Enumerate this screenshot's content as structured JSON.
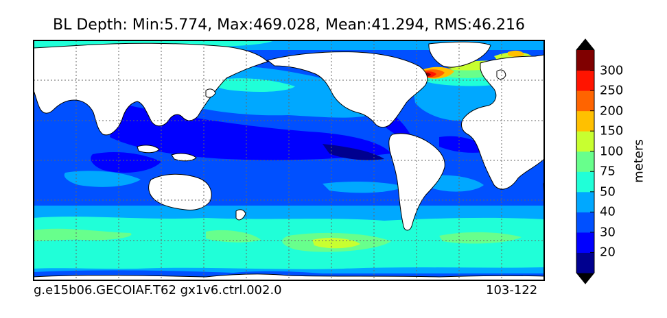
{
  "title": "BL Depth: Min:5.774, Max:469.028, Mean:41.294, RMS:46.216",
  "caption_left": "g.e15b06.GECOIAF.T62 gx1v6.ctrl.002.0",
  "caption_right": "103-122",
  "colorbar": {
    "unit": "meters",
    "ticks": [
      "20",
      "30",
      "40",
      "50",
      "75",
      "100",
      "150",
      "200",
      "250",
      "300"
    ],
    "colors": [
      "#00008f",
      "#0000ff",
      "#0050ff",
      "#00a8ff",
      "#20ffd8",
      "#68ff8c",
      "#c8ff30",
      "#ffc000",
      "#ff6400",
      "#ff1400",
      "#800000"
    ],
    "under_color": "#000000",
    "over_color": "#000000"
  },
  "colors": {
    "land": "#ffffff",
    "coast": "#000000",
    "grid": "#666666"
  }
}
